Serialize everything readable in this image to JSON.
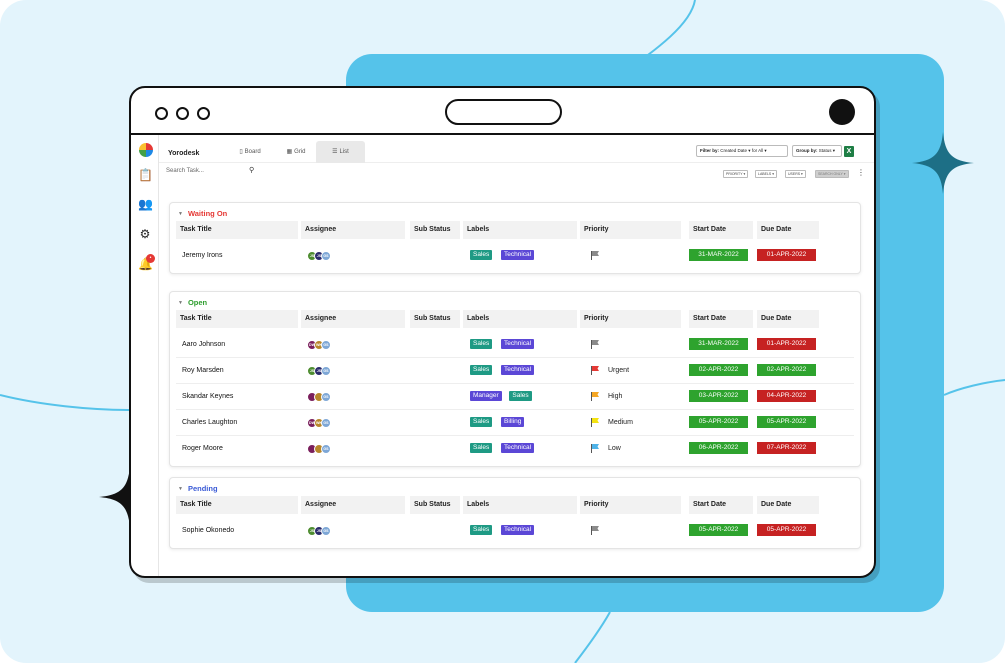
{
  "app": {
    "brand": "Yorodesk",
    "tabs": [
      {
        "label": "Board",
        "icon": "board-icon",
        "active": false
      },
      {
        "label": "Grid",
        "icon": "grid-icon",
        "active": false
      },
      {
        "label": "List",
        "icon": "list-icon",
        "active": true
      }
    ],
    "filter_label": "Filter by:",
    "filter_value": "Created Date",
    "for_label": "for",
    "for_value": "All",
    "group_label": "Group by:",
    "group_value": "Status",
    "export_icon": "excel-icon"
  },
  "search": {
    "placeholder": "Search Task..."
  },
  "mini_buttons": [
    "PRIORITY",
    "LABELS",
    "USERS",
    "SEARCH ONLY"
  ],
  "columns": [
    "Task Title",
    "Assignee",
    "Sub Status",
    "Labels",
    "Priority",
    "Start Date",
    "Due Date"
  ],
  "colors": {
    "waiting": "#e53935",
    "open": "#2e9e2e",
    "pending": "#3b5bd6",
    "teal": "#1e9a84",
    "purple": "#5b47d6"
  },
  "sections": [
    {
      "title": "Waiting On",
      "rows": [
        {
          "name": "Jeremy Irons",
          "avatars": [
            "JS",
            "JS",
            "GS"
          ],
          "labels": [
            {
              "text": "Sales",
              "color": "teal"
            },
            {
              "text": "Technical",
              "color": "purple"
            }
          ],
          "priority": "",
          "flag": "gray",
          "start": "31-MAR-2022",
          "due": "01-APR-2022",
          "due_color": "red"
        }
      ]
    },
    {
      "title": "Open",
      "rows": [
        {
          "name": "Aaro Johnson",
          "avatars": [
            "DW",
            "WK",
            "GS"
          ],
          "labels": [
            {
              "text": "Sales",
              "color": "teal"
            },
            {
              "text": "Technical",
              "color": "purple"
            }
          ],
          "priority": "",
          "flag": "gray",
          "start": "31-MAR-2022",
          "due": "01-APR-2022",
          "due_color": "red"
        },
        {
          "name": "Roy Marsden",
          "avatars": [
            "JS",
            "JS",
            "GS"
          ],
          "labels": [
            {
              "text": "Sales",
              "color": "teal"
            },
            {
              "text": "Technical",
              "color": "purple"
            }
          ],
          "priority": "Urgent",
          "flag": "red",
          "start": "02-APR-2022",
          "due": "02-APR-2022",
          "due_color": "green"
        },
        {
          "name": "Skandar Keynes",
          "avatars": [
            "",
            "",
            "GS"
          ],
          "labels": [
            {
              "text": "Manager",
              "color": "purple"
            },
            {
              "text": "Sales",
              "color": "teal"
            }
          ],
          "priority": "High",
          "flag": "orange",
          "start": "03-APR-2022",
          "due": "04-APR-2022",
          "due_color": "red"
        },
        {
          "name": "Charles Laughton",
          "avatars": [
            "DW",
            "WK",
            "GS"
          ],
          "labels": [
            {
              "text": "Sales",
              "color": "teal"
            },
            {
              "text": "Billing",
              "color": "purple"
            }
          ],
          "priority": "Medium",
          "flag": "yellow",
          "start": "05-APR-2022",
          "due": "05-APR-2022",
          "due_color": "green"
        },
        {
          "name": "Roger Moore",
          "avatars": [
            "",
            "",
            "GS"
          ],
          "labels": [
            {
              "text": "Sales",
              "color": "teal"
            },
            {
              "text": "Technical",
              "color": "purple"
            }
          ],
          "priority": "Low",
          "flag": "blue",
          "start": "06-APR-2022",
          "due": "07-APR-2022",
          "due_color": "red"
        }
      ]
    },
    {
      "title": "Pending",
      "rows": [
        {
          "name": "Sophie Okonedo",
          "avatars": [
            "JS",
            "JS",
            "GS"
          ],
          "labels": [
            {
              "text": "Sales",
              "color": "teal"
            },
            {
              "text": "Technical",
              "color": "purple"
            }
          ],
          "priority": "",
          "flag": "gray",
          "start": "05-APR-2022",
          "due": "05-APR-2022",
          "due_color": "red"
        }
      ]
    }
  ]
}
